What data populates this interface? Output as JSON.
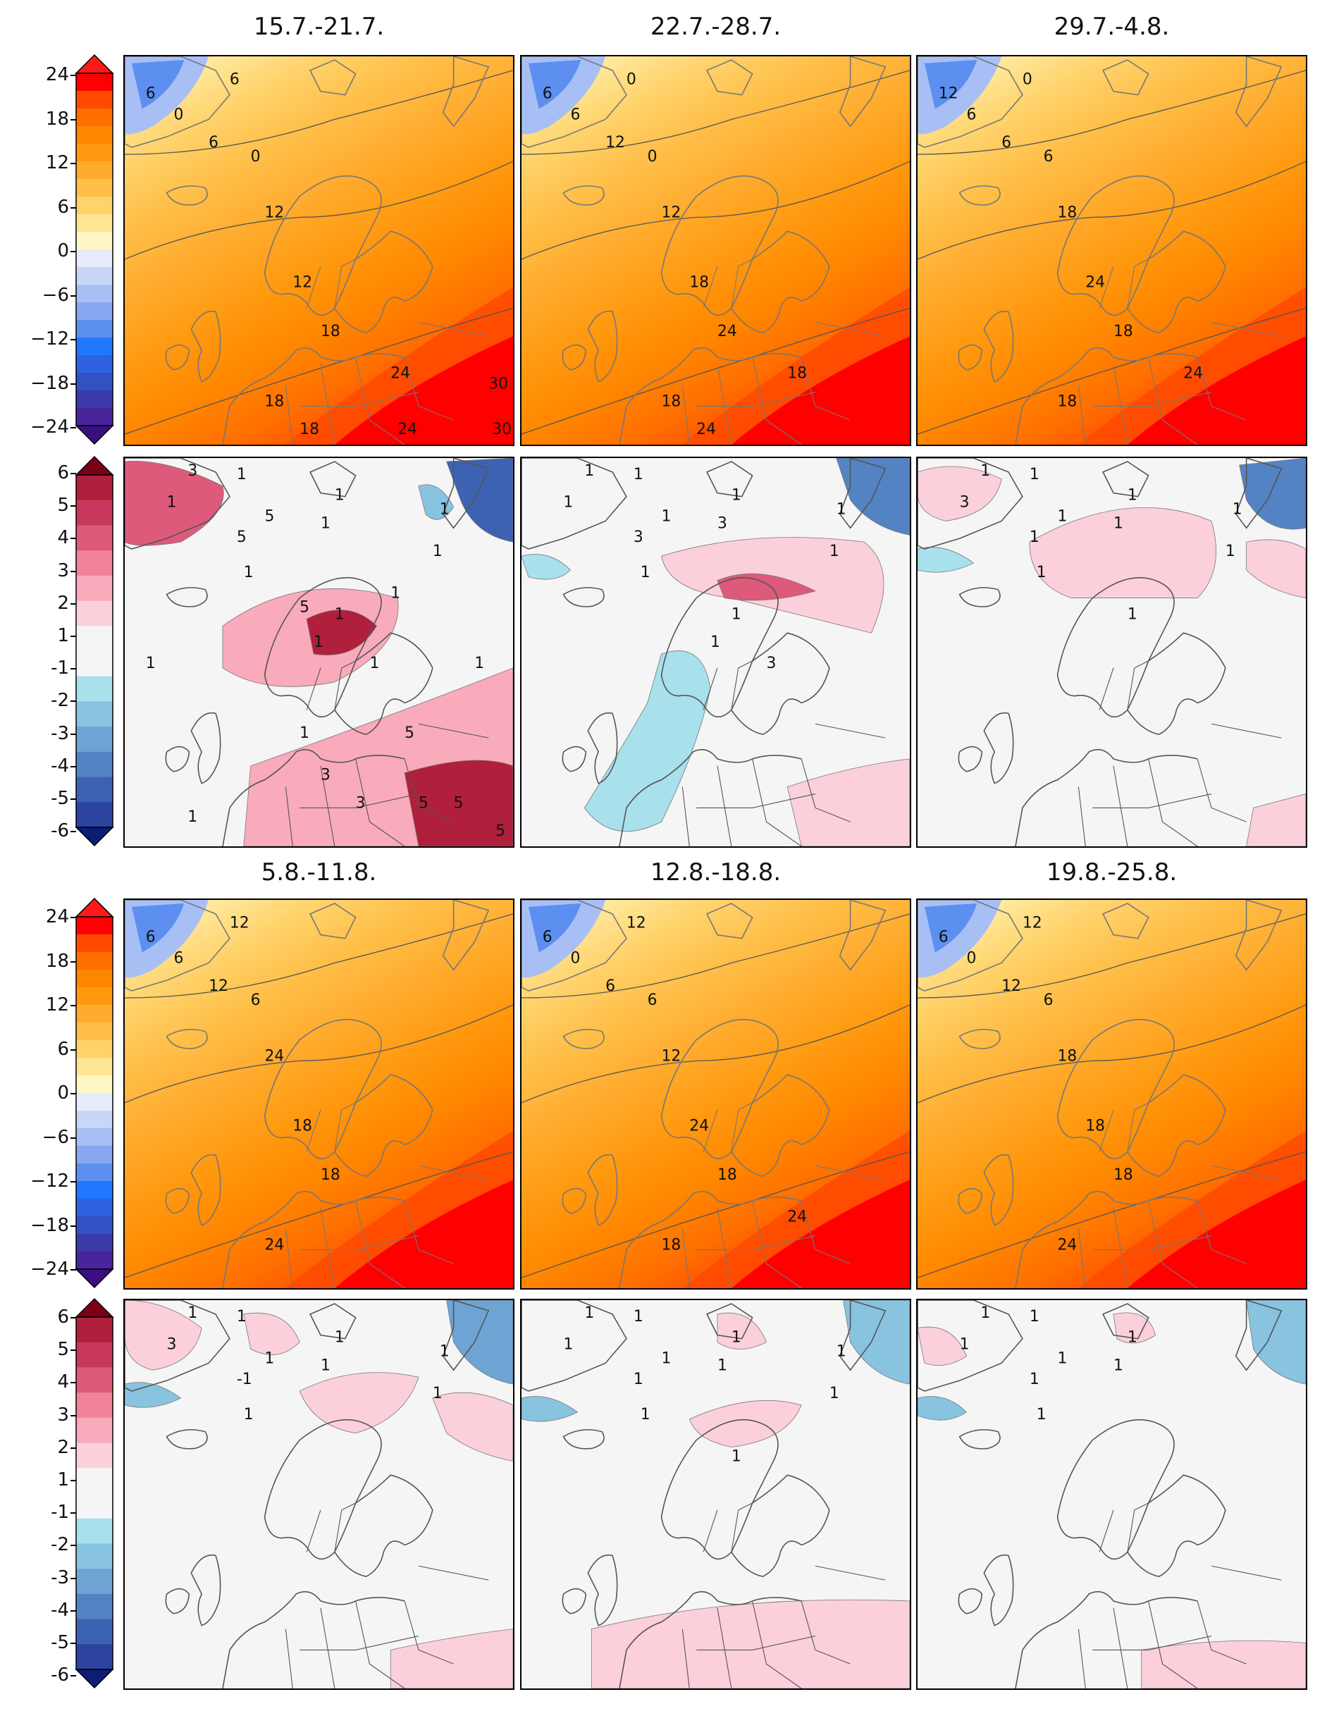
{
  "weeks": {
    "w1": "15.7.-21.7.",
    "w2": "22.7.-28.7.",
    "w3": "29.7.-4.8.",
    "w4": "5.8.-11.8.",
    "w5": "12.8.-18.8.",
    "w6": "19.8.-25.8."
  },
  "temp_colorbar": {
    "ticks": [
      "24",
      "18",
      "12",
      "6",
      "0",
      "−6",
      "−12",
      "−18",
      "−24"
    ],
    "colors": [
      "#fe0000",
      "#ff4a00",
      "#ff6f00",
      "#ff8600",
      "#ff9a10",
      "#ffab2e",
      "#ffbf49",
      "#ffd26a",
      "#ffe594",
      "#fff6c6",
      "#e6ecfb",
      "#c9d6f8",
      "#a8bff5",
      "#88a7f1",
      "#5c8ff0",
      "#1f78ff",
      "#2f62e0",
      "#3450c5",
      "#3b3aaa",
      "#49249a"
    ],
    "over_color": "#ff1a1a",
    "under_color": "#3b0f80"
  },
  "anom_colorbar": {
    "ticks": [
      "6",
      "5",
      "4",
      "3",
      "2",
      "1",
      "-1",
      "-2",
      "-3",
      "-4",
      "-5",
      "-6"
    ],
    "colors": [
      "#b01f3c",
      "#c7375c",
      "#dd5a7a",
      "#f0839b",
      "#f9aabb",
      "#fbd0db",
      "#f5f5f5",
      "#f5f5f5",
      "#a8e0ec",
      "#88c3e0",
      "#6ea4d3",
      "#5483c4",
      "#3e62b3",
      "#2c449f"
    ],
    "over_color": "#7a0016",
    "under_color": "#0c1e73"
  },
  "contour_labels": {
    "w1_temp": [
      "6",
      "0",
      "0",
      "6",
      "6",
      "12",
      "12",
      "18",
      "18",
      "24",
      "18",
      "24",
      "30",
      "30"
    ],
    "w2_temp": [
      "0",
      "6",
      "0",
      "6",
      "12",
      "12",
      "18",
      "24",
      "18",
      "18",
      "24"
    ],
    "w3_temp": [
      "0",
      "6",
      "6",
      "12",
      "6",
      "18",
      "24",
      "18",
      "18",
      "24"
    ],
    "w4_temp": [
      "12",
      "6",
      "6",
      "6",
      "12",
      "24",
      "18",
      "18",
      "24"
    ],
    "w5_temp": [
      "12",
      "0",
      "6",
      "6",
      "6",
      "12",
      "24",
      "18",
      "18",
      "24"
    ],
    "w6_temp": [
      "12",
      "0",
      "6",
      "6",
      "12",
      "18",
      "18",
      "18",
      "24"
    ],
    "w1_anom": [
      "3",
      "1",
      "5",
      "5",
      "1",
      "1",
      "1",
      "1",
      "1",
      "1",
      "1",
      "1",
      "1",
      "5",
      "1",
      "5",
      "3",
      "1",
      "1",
      "1",
      "1",
      "5",
      "3",
      "5",
      "5"
    ],
    "w2_anom": [
      "1",
      "1",
      "1",
      "3",
      "1",
      "3",
      "1",
      "1",
      "1",
      "1",
      "1",
      "1",
      "3"
    ],
    "w3_anom": [
      "1",
      "1",
      "1",
      "1",
      "3",
      "1",
      "1",
      "1",
      "1",
      "1",
      "1"
    ],
    "w4_anom": [
      "1",
      "1",
      "1",
      "-1",
      "3",
      "1",
      "1",
      "1",
      "1",
      "1"
    ],
    "w5_anom": [
      "1",
      "1",
      "1",
      "1",
      "1",
      "1",
      "1",
      "1",
      "1",
      "1",
      "1"
    ],
    "w6_anom": [
      "1",
      "1",
      "1",
      "1",
      "1",
      "1",
      "1",
      "1"
    ]
  }
}
